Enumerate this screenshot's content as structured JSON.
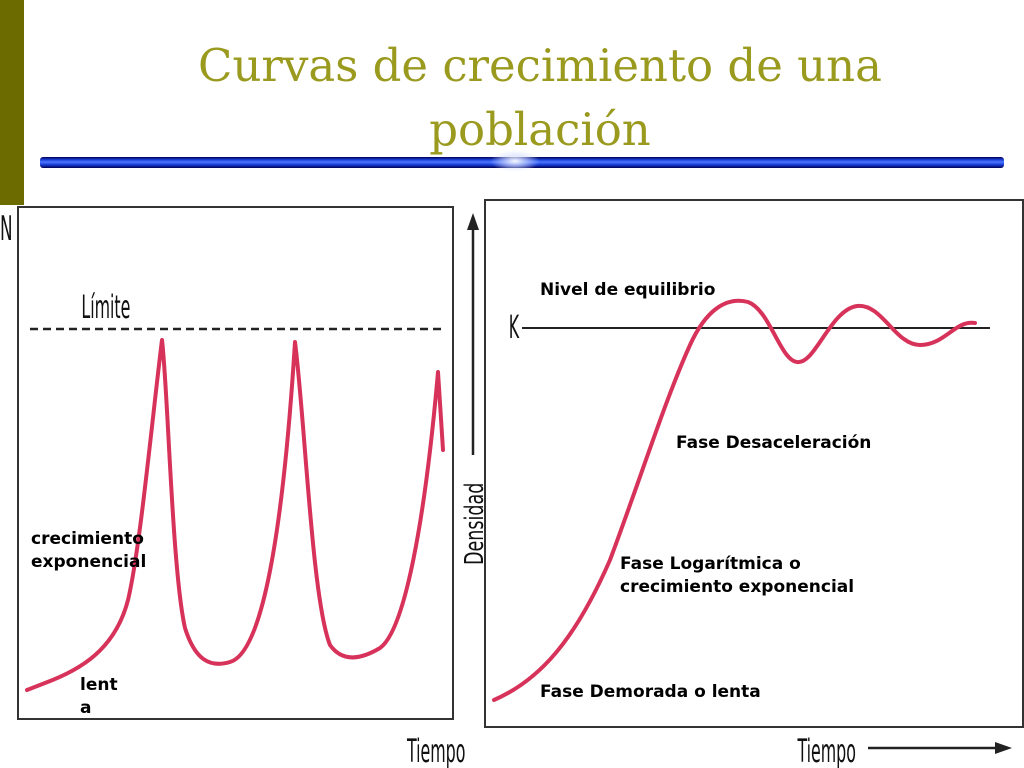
{
  "slide": {
    "title": "Curvas de crecimiento de una población",
    "colors": {
      "sidebar": "#6b6b00",
      "title": "#9a9a1f",
      "rule": "#1a3fd6",
      "curve": "#d7335a",
      "dashed_line": "#222222"
    }
  },
  "left_chart": {
    "y_axis_label": "N",
    "limit_label": "Límite",
    "x_axis_label": "Tiempo",
    "label_growth": "crecimiento exponencial",
    "label_slow": "lenta",
    "description": "boom and bust oscillation that overshoots the limit"
  },
  "right_chart": {
    "y_axis_label": "Densidad",
    "k_label": "K",
    "x_axis_label": "Tiempo",
    "label_equilibrium": "Nivel de equilibrio",
    "label_deceleration": "Fase Desaceleración",
    "label_log_phase": "Fase Logarítmica o crecimiento exponencial",
    "label_lag_phase": "Fase Demorada o lenta"
  }
}
